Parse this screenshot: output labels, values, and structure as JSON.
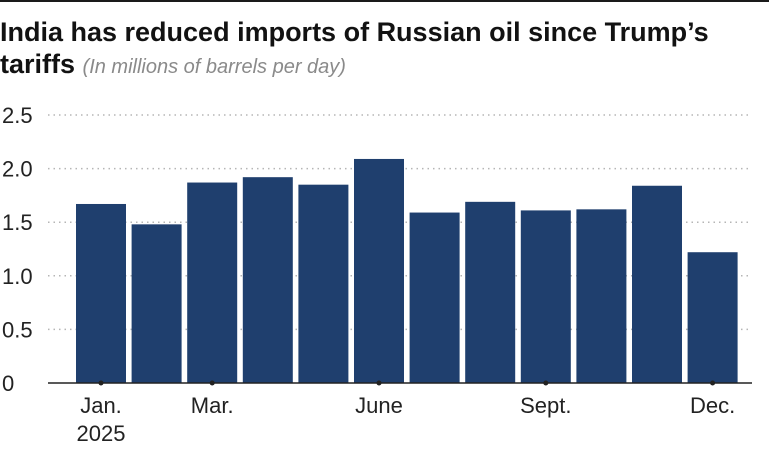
{
  "header": {
    "title": "India has reduced imports of Russian oil since Trump’s tariffs",
    "subtitle": "(In millions of barrels per day)"
  },
  "colors": {
    "bar": "#1f3f6e",
    "grid": "#b5b5b5",
    "axis": "#222222"
  },
  "chart_data": {
    "type": "bar",
    "title": "India has reduced imports of Russian oil since Trump’s tariffs",
    "subtitle": "(In millions of barrels per day)",
    "xlabel": "",
    "ylabel": "",
    "categories": [
      "Jan. 2025",
      "Feb. 2025",
      "Mar. 2025",
      "Apr. 2025",
      "May 2025",
      "June 2025",
      "July 2025",
      "Aug. 2025",
      "Sept. 2025",
      "Oct. 2025",
      "Nov. 2025",
      "Dec. 2025"
    ],
    "values": [
      1.67,
      1.48,
      1.87,
      1.92,
      1.85,
      2.09,
      1.59,
      1.69,
      1.61,
      1.62,
      1.84,
      1.22
    ],
    "ylim": [
      0,
      2.5
    ],
    "yticks": [
      0,
      0.5,
      1.0,
      1.5,
      2.0,
      2.5
    ],
    "ytick_labels": [
      "0",
      "0.5",
      "1.0",
      "1.5",
      "2.0",
      "2.5"
    ],
    "x_tick_marks": [
      0,
      2,
      5,
      8,
      11
    ],
    "x_tick_labels": [
      {
        "index": 0,
        "text": "Jan.",
        "text2": "2025"
      },
      {
        "index": 2,
        "text": "Mar."
      },
      {
        "index": 5,
        "text": "June"
      },
      {
        "index": 8,
        "text": "Sept."
      },
      {
        "index": 11,
        "text": "Dec."
      }
    ],
    "grid": true,
    "grid_style": "dotted",
    "legend": "none"
  }
}
